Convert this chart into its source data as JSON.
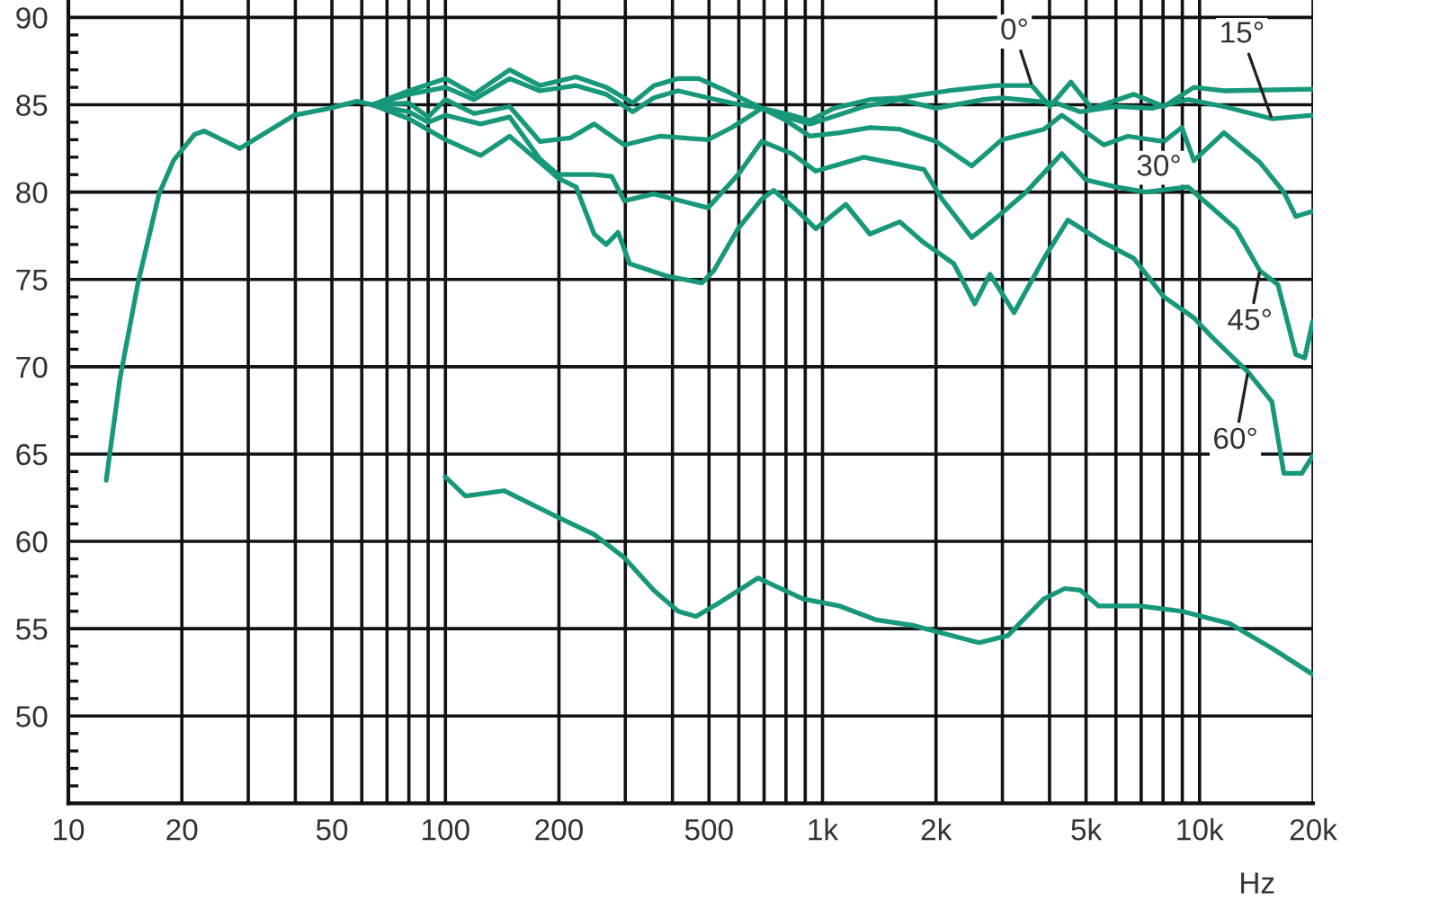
{
  "chart_data": {
    "type": "line",
    "xlabel": "Hz",
    "log": "x",
    "grid": true,
    "legend": false,
    "marker": "none",
    "line_style": "solid",
    "xlim": [
      10,
      20000
    ],
    "ylim": [
      45,
      91
    ],
    "xticks": [
      10,
      20,
      {
        "value": 30,
        "label": null
      },
      {
        "value": 40,
        "label": null
      },
      50,
      {
        "value": 60,
        "label": null
      },
      {
        "value": 70,
        "label": null
      },
      {
        "value": 80,
        "label": null
      },
      {
        "value": 90,
        "label": null
      },
      100,
      200,
      {
        "value": 300,
        "label": null
      },
      {
        "value": 400,
        "label": null
      },
      500,
      {
        "value": 600,
        "label": null
      },
      {
        "value": 700,
        "label": null
      },
      {
        "value": 800,
        "label": null
      },
      {
        "value": 900,
        "label": null
      },
      {
        "value": 1000,
        "label": "1k"
      },
      {
        "value": 2000,
        "label": "2k"
      },
      {
        "value": 3000,
        "label": null
      },
      {
        "value": 4000,
        "label": null
      },
      {
        "value": 5000,
        "label": "5k"
      },
      {
        "value": 6000,
        "label": null
      },
      {
        "value": 7000,
        "label": null
      },
      {
        "value": 8000,
        "label": null
      },
      {
        "value": 9000,
        "label": null
      },
      {
        "value": 10000,
        "label": "10k"
      },
      {
        "value": 20000,
        "label": "20k"
      }
    ],
    "yticks": [
      {
        "value": 46,
        "label": null
      },
      {
        "value": 47,
        "label": null
      },
      {
        "value": 48,
        "label": null
      },
      {
        "value": 49,
        "label": null
      },
      50,
      {
        "value": 51,
        "label": null
      },
      {
        "value": 52,
        "label": null
      },
      {
        "value": 53,
        "label": null
      },
      {
        "value": 54,
        "label": null
      },
      55,
      {
        "value": 56,
        "label": null
      },
      {
        "value": 57,
        "label": null
      },
      {
        "value": 58,
        "label": null
      },
      {
        "value": 59,
        "label": null
      },
      60,
      {
        "value": 61,
        "label": null
      },
      {
        "value": 62,
        "label": null
      },
      {
        "value": 63,
        "label": null
      },
      {
        "value": 64,
        "label": null
      },
      65,
      {
        "value": 66,
        "label": null
      },
      {
        "value": 67,
        "label": null
      },
      {
        "value": 68,
        "label": null
      },
      {
        "value": 69,
        "label": null
      },
      70,
      {
        "value": 71,
        "label": null
      },
      {
        "value": 72,
        "label": null
      },
      {
        "value": 73,
        "label": null
      },
      {
        "value": 74,
        "label": null
      },
      75,
      {
        "value": 76,
        "label": null
      },
      {
        "value": 77,
        "label": null
      },
      {
        "value": 78,
        "label": null
      },
      {
        "value": 79,
        "label": null
      },
      80,
      {
        "value": 81,
        "label": null
      },
      {
        "value": 82,
        "label": null
      },
      {
        "value": 83,
        "label": null
      },
      {
        "value": 84,
        "label": null
      },
      85,
      {
        "value": 86,
        "label": null
      },
      {
        "value": 87,
        "label": null
      },
      {
        "value": 88,
        "label": null
      },
      {
        "value": 89,
        "label": null
      },
      90
    ],
    "series": [
      {
        "name": "0°",
        "color": "#17987a",
        "x": [
          12.6,
          13.7,
          15.3,
          17.4,
          19.0,
          21.6,
          22.9,
          28.5,
          39.7,
          49.4,
          58.3,
          64,
          80,
          100,
          119,
          148,
          178,
          222,
          267,
          314,
          357,
          414,
          470,
          554,
          690,
          830,
          927,
          1072,
          1336,
          1603,
          2153,
          2882,
          3593,
          4010,
          4559,
          5178,
          6693,
          8040,
          9660,
          11600,
          19950
        ],
        "values": [
          63.5,
          69.3,
          74.8,
          79.9,
          81.8,
          83.3,
          83.5,
          82.5,
          84.4,
          84.8,
          85.2,
          85,
          85.8,
          86.5,
          85.6,
          87.0,
          86.1,
          86.6,
          86.0,
          85.1,
          86.1,
          86.5,
          86.5,
          85.8,
          84.8,
          84.4,
          84.1,
          84.8,
          85.3,
          85.4,
          85.8,
          86.1,
          86.1,
          84.9,
          86.3,
          84.8,
          85.6,
          84.9,
          86.0,
          85.8,
          85.9
        ]
      },
      {
        "name": "15°",
        "color": "#17987a",
        "x": [
          64,
          80,
          100,
          119,
          148,
          178,
          222,
          267,
          314,
          357,
          414,
          497,
          575,
          690,
          800,
          927,
          1288,
          1603,
          2000,
          2679,
          2990,
          4160,
          4818,
          5995,
          7470,
          9310,
          11600,
          15550,
          19950
        ],
        "values": [
          85,
          85.6,
          86.0,
          85.3,
          86.5,
          85.8,
          86.1,
          85.6,
          84.6,
          85.4,
          85.8,
          85.4,
          85.1,
          84.8,
          84.3,
          83.9,
          84.9,
          85.3,
          84.8,
          85.3,
          85.4,
          85.1,
          84.6,
          84.9,
          84.8,
          85.3,
          84.9,
          84.2,
          84.4
        ]
      },
      {
        "name": "30°",
        "color": "#17987a",
        "x": [
          64,
          80,
          90,
          100,
          119,
          148,
          178,
          214,
          248,
          298,
          370,
          497,
          575,
          690,
          800,
          927,
          1112,
          1336,
          1603,
          2000,
          2488,
          2990,
          3866,
          4313,
          5572,
          6452,
          8040,
          8973,
          9660,
          11600,
          14450,
          16730,
          18000,
          19950
        ],
        "values": [
          85,
          85.1,
          84.3,
          85.3,
          84.5,
          84.9,
          82.9,
          83.1,
          83.9,
          82.7,
          83.2,
          83.0,
          83.7,
          84.8,
          84.1,
          83.2,
          83.4,
          83.7,
          83.6,
          82.9,
          81.5,
          83.0,
          83.6,
          84.4,
          82.7,
          83.2,
          82.9,
          83.7,
          81.8,
          83.4,
          81.7,
          80.0,
          78.6,
          78.9
        ]
      },
      {
        "name": "45°",
        "color": "#17987a",
        "x": [
          64,
          80,
          90,
          100,
          124,
          148,
          178,
          199,
          248,
          276,
          298,
          357,
          497,
          597,
          690,
          830,
          960,
          1153,
          1288,
          1858,
          2075,
          2488,
          2990,
          3466,
          4313,
          4993,
          5995,
          7200,
          9310,
          10790,
          12480,
          14450,
          16140,
          18000,
          19000,
          19950
        ],
        "values": [
          85,
          84.6,
          84.0,
          84.4,
          83.9,
          84.3,
          81.9,
          81.0,
          81.0,
          80.9,
          79.5,
          79.9,
          79.1,
          81.0,
          82.9,
          82.2,
          81.2,
          81.7,
          82.0,
          81.3,
          79.6,
          77.4,
          78.8,
          80.0,
          82.2,
          80.7,
          80.3,
          80.0,
          80.3,
          79.1,
          77.9,
          75.5,
          74.7,
          70.7,
          70.5,
          72.6
        ]
      },
      {
        "name": "60°",
        "color": "#17987a",
        "x": [
          64,
          80,
          100,
          124,
          148,
          199,
          222,
          248,
          267,
          287,
          308,
          385,
          479,
          515,
          597,
          690,
          743,
          861,
          960,
          1153,
          1336,
          1603,
          1858,
          2230,
          2535,
          2779,
          3221,
          3866,
          4475,
          5572,
          6693,
          8040,
          9660,
          10790,
          13430,
          15550,
          16730,
          18670,
          19950
        ],
        "values": [
          85,
          84.2,
          83.0,
          82.1,
          83.2,
          80.8,
          80.3,
          77.6,
          77.0,
          77.7,
          75.9,
          75.2,
          74.8,
          75.5,
          77.9,
          79.6,
          80.1,
          78.9,
          77.9,
          79.3,
          77.6,
          78.3,
          77.1,
          75.9,
          73.6,
          75.3,
          73.1,
          76.2,
          78.4,
          77.1,
          76.2,
          74.0,
          72.8,
          71.7,
          69.7,
          68.0,
          63.9,
          63.9,
          64.9
        ]
      },
      {
        "color": "#17987a",
        "x": [
          99.8,
          113,
          143,
          198,
          248,
          297,
          357,
          414,
          462,
          534,
          675,
          889,
          1110,
          1390,
          1730,
          2600,
          3100,
          3860,
          4390,
          4830,
          5400,
          6950,
          8960,
          12000,
          15500,
          19900
        ],
        "values": [
          63.7,
          62.6,
          62.9,
          61.4,
          60.4,
          59.1,
          57.2,
          56.0,
          55.7,
          56.5,
          57.9,
          56.7,
          56.3,
          55.5,
          55.2,
          54.2,
          54.6,
          56.7,
          57.3,
          57.2,
          56.3,
          56.3,
          56.0,
          55.3,
          53.9,
          52.4
        ]
      }
    ]
  }
}
